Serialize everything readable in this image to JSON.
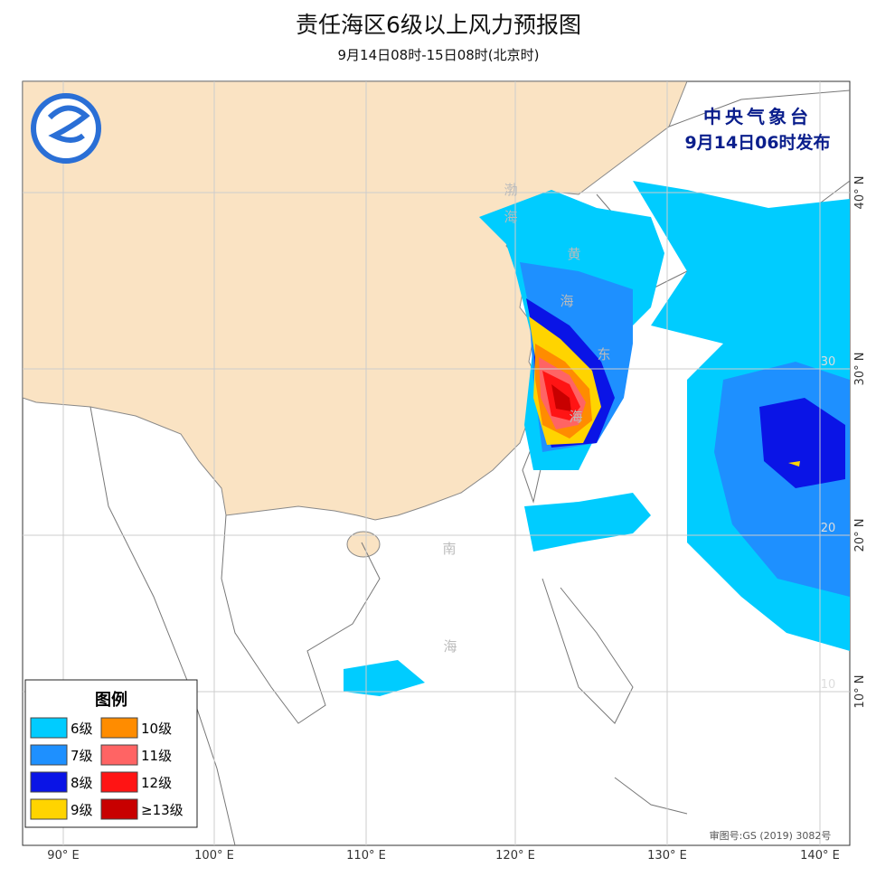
{
  "header": {
    "title": "责任海区6级以上风力预报图",
    "subtitle": "9月14日08时-15日08时(北京时)"
  },
  "issuer": {
    "name": "中央气象台",
    "time": "9月14日06时发布"
  },
  "legend": {
    "title": "图例",
    "items": [
      {
        "label": "6级",
        "color": "#00ccff"
      },
      {
        "label": "7级",
        "color": "#1e90ff"
      },
      {
        "label": "8级",
        "color": "#0a14e6"
      },
      {
        "label": "9级",
        "color": "#ffd400"
      },
      {
        "label": "10级",
        "color": "#ff8c00"
      },
      {
        "label": "11级",
        "color": "#ff6464"
      },
      {
        "label": "12级",
        "color": "#ff1414"
      },
      {
        "label": "≥13级",
        "color": "#c80000"
      }
    ]
  },
  "axes": {
    "bottom": [
      "90° E",
      "100° E",
      "110° E",
      "120° E",
      "130° E",
      "140° E"
    ],
    "right": [
      "40° N",
      "30° N",
      "20° N",
      "10° N"
    ],
    "inner": [
      "30",
      "20",
      "10"
    ]
  },
  "sea_labels": [
    "渤",
    "海",
    "黄",
    "海",
    "东",
    "海",
    "南",
    "海"
  ],
  "footer": {
    "approval": "审图号:GS (2019) 3082号"
  }
}
